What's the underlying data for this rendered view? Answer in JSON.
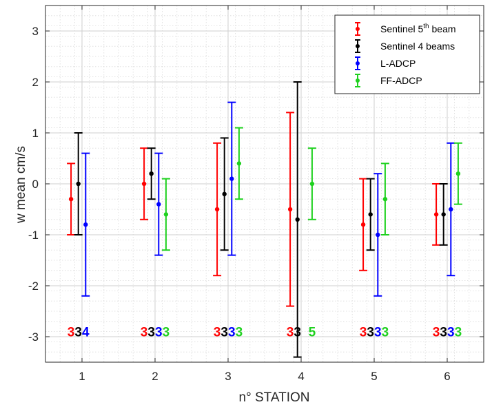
{
  "chart_data": {
    "type": "errorbar",
    "title": "",
    "xlabel": "n° STATION",
    "ylabel": "w mean cm/s",
    "xlim": [
      0.5,
      6.5
    ],
    "ylim": [
      -3.5,
      3.5
    ],
    "x_ticks": [
      1,
      2,
      3,
      4,
      5,
      6
    ],
    "y_ticks": [
      -3,
      -2,
      -1,
      0,
      1,
      2,
      3
    ],
    "x_tick_labels": [
      "1",
      "2",
      "3",
      "4",
      "5",
      "6"
    ],
    "y_tick_labels": [
      "-3",
      "-2",
      "-1",
      "0",
      "1",
      "2",
      "3"
    ],
    "grid": true,
    "minor_grid": true,
    "legend_position": "top-right",
    "series": [
      {
        "name": "Sentinel 5th beam",
        "legend_label": {
          "main": "Sentinel 5",
          "sup": "th",
          "rest": " beam"
        },
        "color": "#ff0000",
        "points": [
          {
            "x": 1,
            "mean": -0.3,
            "low": -1.0,
            "high": 0.4,
            "count": "3"
          },
          {
            "x": 2,
            "mean": 0.0,
            "low": -0.7,
            "high": 0.7,
            "count": "3"
          },
          {
            "x": 3,
            "mean": -0.5,
            "low": -1.8,
            "high": 0.8,
            "count": "3"
          },
          {
            "x": 4,
            "mean": -0.5,
            "low": -2.4,
            "high": 1.4,
            "count": "3"
          },
          {
            "x": 5,
            "mean": -0.8,
            "low": -1.7,
            "high": 0.1,
            "count": "3"
          },
          {
            "x": 6,
            "mean": -0.6,
            "low": -1.2,
            "high": 0.0,
            "count": "3"
          }
        ]
      },
      {
        "name": "Sentinel 4 beams",
        "color": "#000000",
        "points": [
          {
            "x": 1,
            "mean": 0.0,
            "low": -1.0,
            "high": 1.0,
            "count": "3"
          },
          {
            "x": 2,
            "mean": 0.2,
            "low": -0.3,
            "high": 0.7,
            "count": "3"
          },
          {
            "x": 3,
            "mean": -0.2,
            "low": -1.3,
            "high": 0.9,
            "count": "3"
          },
          {
            "x": 4,
            "mean": -0.7,
            "low": -3.4,
            "high": 2.0,
            "count": "3"
          },
          {
            "x": 5,
            "mean": -0.6,
            "low": -1.3,
            "high": 0.1,
            "count": "3"
          },
          {
            "x": 6,
            "mean": -0.6,
            "low": -1.2,
            "high": 0.0,
            "count": "3"
          }
        ]
      },
      {
        "name": "L-ADCP",
        "color": "#0000ff",
        "points": [
          {
            "x": 1,
            "mean": -0.8,
            "low": -2.2,
            "high": 0.6,
            "count": "4"
          },
          {
            "x": 2,
            "mean": -0.4,
            "low": -1.4,
            "high": 0.6,
            "count": "3"
          },
          {
            "x": 3,
            "mean": 0.1,
            "low": -1.4,
            "high": 1.6,
            "count": "3"
          },
          {
            "x": 5,
            "mean": -1.0,
            "low": -2.2,
            "high": 0.2,
            "count": "3"
          },
          {
            "x": 6,
            "mean": -0.5,
            "low": -1.8,
            "high": 0.8,
            "count": "3"
          }
        ]
      },
      {
        "name": "FF-ADCP",
        "color": "#1fd11f",
        "points": [
          {
            "x": 2,
            "mean": -0.6,
            "low": -1.3,
            "high": 0.1,
            "count": "3"
          },
          {
            "x": 3,
            "mean": 0.4,
            "low": -0.3,
            "high": 1.1,
            "count": "3"
          },
          {
            "x": 4,
            "mean": 0.0,
            "low": -0.7,
            "high": 0.7,
            "count": "5"
          },
          {
            "x": 5,
            "mean": -0.3,
            "low": -1.0,
            "high": 0.4,
            "count": "3"
          },
          {
            "x": 6,
            "mean": 0.2,
            "low": -0.4,
            "high": 0.8,
            "count": "3"
          }
        ]
      }
    ],
    "count_row_y": -2.9
  }
}
